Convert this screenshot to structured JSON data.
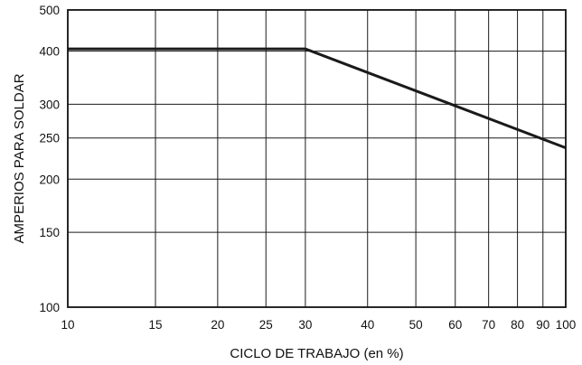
{
  "chart_data": {
    "type": "line",
    "title": "",
    "xlabel": "CICLO DE TRABAJO (en %)",
    "ylabel": "AMPERIOS PARA SOLDAR",
    "x_scale": "log",
    "y_scale": "log",
    "xlim": [
      10,
      100
    ],
    "ylim": [
      100,
      500
    ],
    "x_ticks": [
      10,
      15,
      20,
      25,
      30,
      40,
      50,
      60,
      70,
      80,
      90,
      100
    ],
    "x_tick_labels": [
      "10",
      "15",
      "20",
      "25",
      "30",
      "40",
      "50",
      "60",
      "70",
      "80",
      "90",
      "100"
    ],
    "y_ticks": [
      100,
      150,
      200,
      250,
      300,
      400,
      500
    ],
    "y_tick_labels": [
      "100",
      "150",
      "200",
      "250",
      "300",
      "400",
      "500"
    ],
    "grid": true,
    "series": [
      {
        "x": [
          10,
          30,
          100
        ],
        "y": [
          405,
          405,
          237
        ]
      }
    ],
    "colors": {
      "line": "#1a1a1a",
      "grid": "#1a1a1a",
      "background": "#ffffff"
    }
  }
}
